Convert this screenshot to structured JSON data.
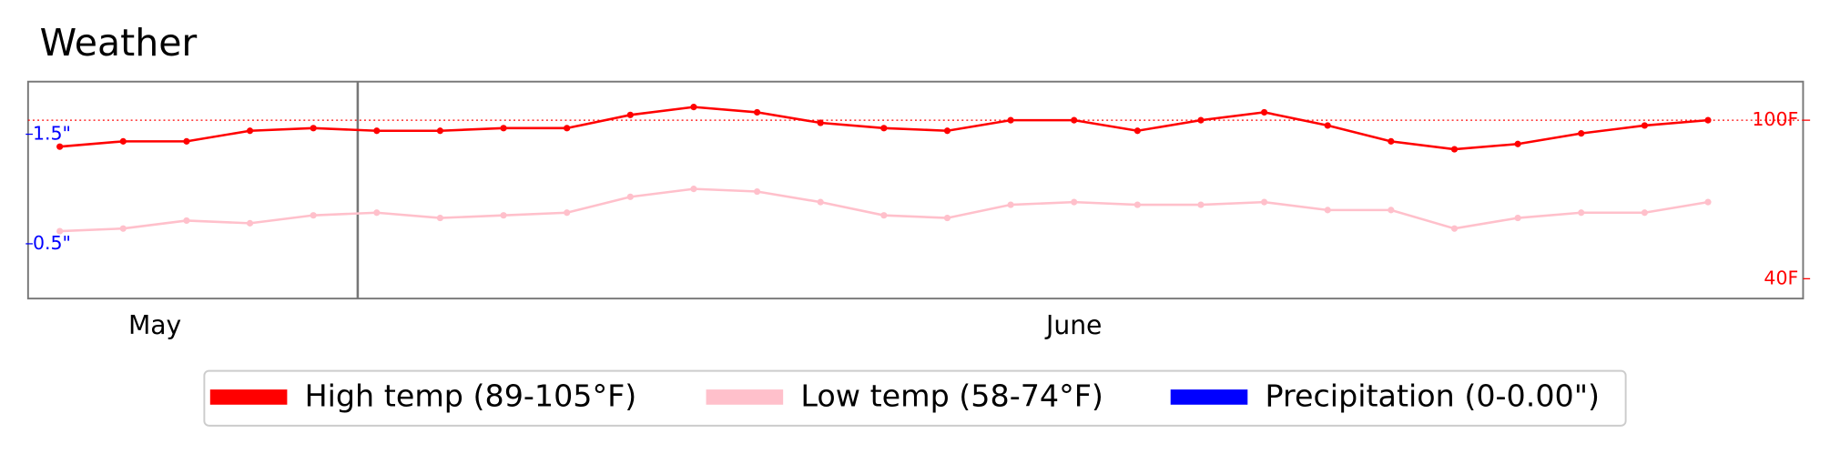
{
  "chart_data": {
    "type": "line",
    "title": "Weather",
    "x": [
      0,
      1,
      2,
      3,
      4,
      5,
      6,
      7,
      8,
      9,
      10,
      11,
      12,
      13,
      14,
      15,
      16,
      17,
      18,
      19,
      20,
      21,
      22,
      23,
      24,
      25,
      26
    ],
    "xlim": [
      -0.5,
      27.5
    ],
    "xticks": [
      {
        "value": 1.5,
        "label": "May"
      },
      {
        "value": 16,
        "label": "June"
      }
    ],
    "marker_x": 4.7,
    "ylim": [
      32.5,
      114.6
    ],
    "yticks": [
      {
        "value": 40,
        "label": "40F"
      },
      {
        "value": 100,
        "label": "100F"
      }
    ],
    "reference_line": 100,
    "y2lim": [
      0,
      1.98
    ],
    "y2ticks": [
      {
        "value": 0.5,
        "label": "0.5\""
      },
      {
        "value": 1.5,
        "label": "1.5\""
      }
    ],
    "series": [
      {
        "name": "High temp (89-105°F)",
        "color": "#ff0000",
        "values": [
          90,
          92,
          92,
          96,
          97,
          96,
          96,
          97,
          97,
          102,
          105,
          103,
          99,
          97,
          96,
          100,
          100,
          96,
          100,
          103,
          98,
          92,
          89,
          91,
          95,
          98,
          100
        ]
      },
      {
        "name": "Low temp (58-74°F)",
        "color": "#ffc0cb",
        "values": [
          58,
          59,
          62,
          61,
          64,
          65,
          63,
          64,
          65,
          71,
          74,
          73,
          69,
          64,
          63,
          68,
          69,
          68,
          68,
          69,
          66,
          66,
          59,
          63,
          65,
          65,
          69
        ]
      },
      {
        "name": "Precipitation (0-0.00\")",
        "color": "#0000ff",
        "axis": "y2",
        "values": [
          0,
          0,
          0,
          0,
          0,
          0,
          0,
          0,
          0,
          0,
          0,
          0,
          0,
          0,
          0,
          0,
          0,
          0,
          0,
          0,
          0,
          0,
          0,
          0,
          0,
          0,
          0
        ]
      }
    ]
  }
}
